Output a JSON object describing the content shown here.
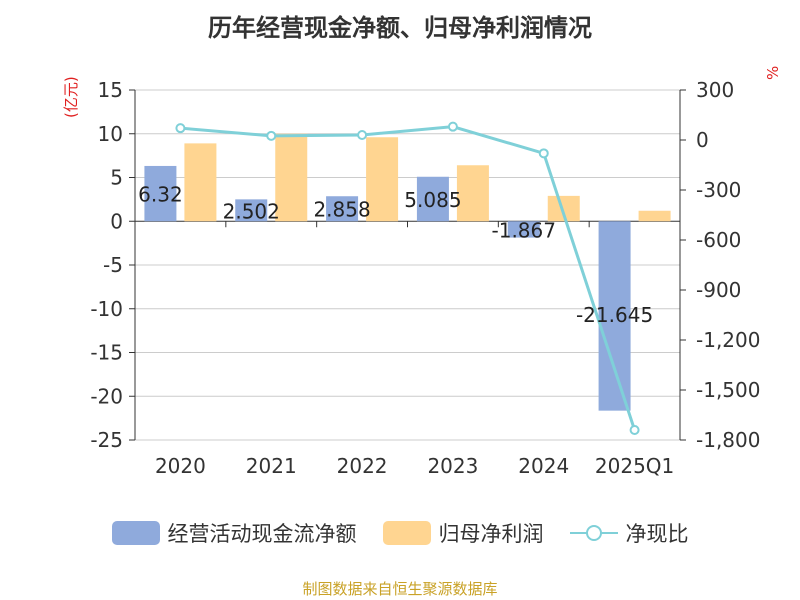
{
  "chart_data": {
    "type": "bar",
    "title": "历年经营现金净额、归母净利润情况",
    "categories": [
      "2020",
      "2021",
      "2022",
      "2023",
      "2024",
      "2025Q1"
    ],
    "series": [
      {
        "name": "经营活动现金流净额",
        "type": "bar",
        "axis": "left",
        "color": "#8faadc",
        "values": [
          6.32,
          2.502,
          2.858,
          5.085,
          -1.867,
          -21.645
        ],
        "labels": [
          "6.32",
          "2.502",
          "2.858",
          "5.085",
          "-1.867",
          "-21.645"
        ]
      },
      {
        "name": "归母净利润",
        "type": "bar",
        "axis": "left",
        "color": "#ffd591",
        "values": [
          8.9,
          10.0,
          9.6,
          6.4,
          2.9,
          1.2
        ]
      },
      {
        "name": "净现比",
        "type": "line",
        "axis": "right",
        "color": "#7fd0d8",
        "values": [
          71,
          25,
          30,
          80,
          -80,
          -1740
        ]
      }
    ],
    "ylabel_left": "(亿元)",
    "ylabel_right": "%",
    "ylim_left": [
      -25,
      15
    ],
    "yticks_left": [
      "15",
      "10",
      "5",
      "0",
      "-5",
      "-10",
      "-15",
      "-20",
      "-25"
    ],
    "ylim_right": [
      -1800,
      300
    ],
    "yticks_right": [
      "300",
      "0",
      "-300",
      "-600",
      "-900",
      "-1,200",
      "-1,500",
      "-1,800"
    ]
  },
  "legend": {
    "item1": "经营活动现金流净额",
    "item2": "归母净利润",
    "item3": "净现比"
  },
  "colors": {
    "bar1": "#8faadc",
    "bar2": "#ffd591",
    "line": "#7fd0d8"
  },
  "source": "制图数据来自恒生聚源数据库"
}
